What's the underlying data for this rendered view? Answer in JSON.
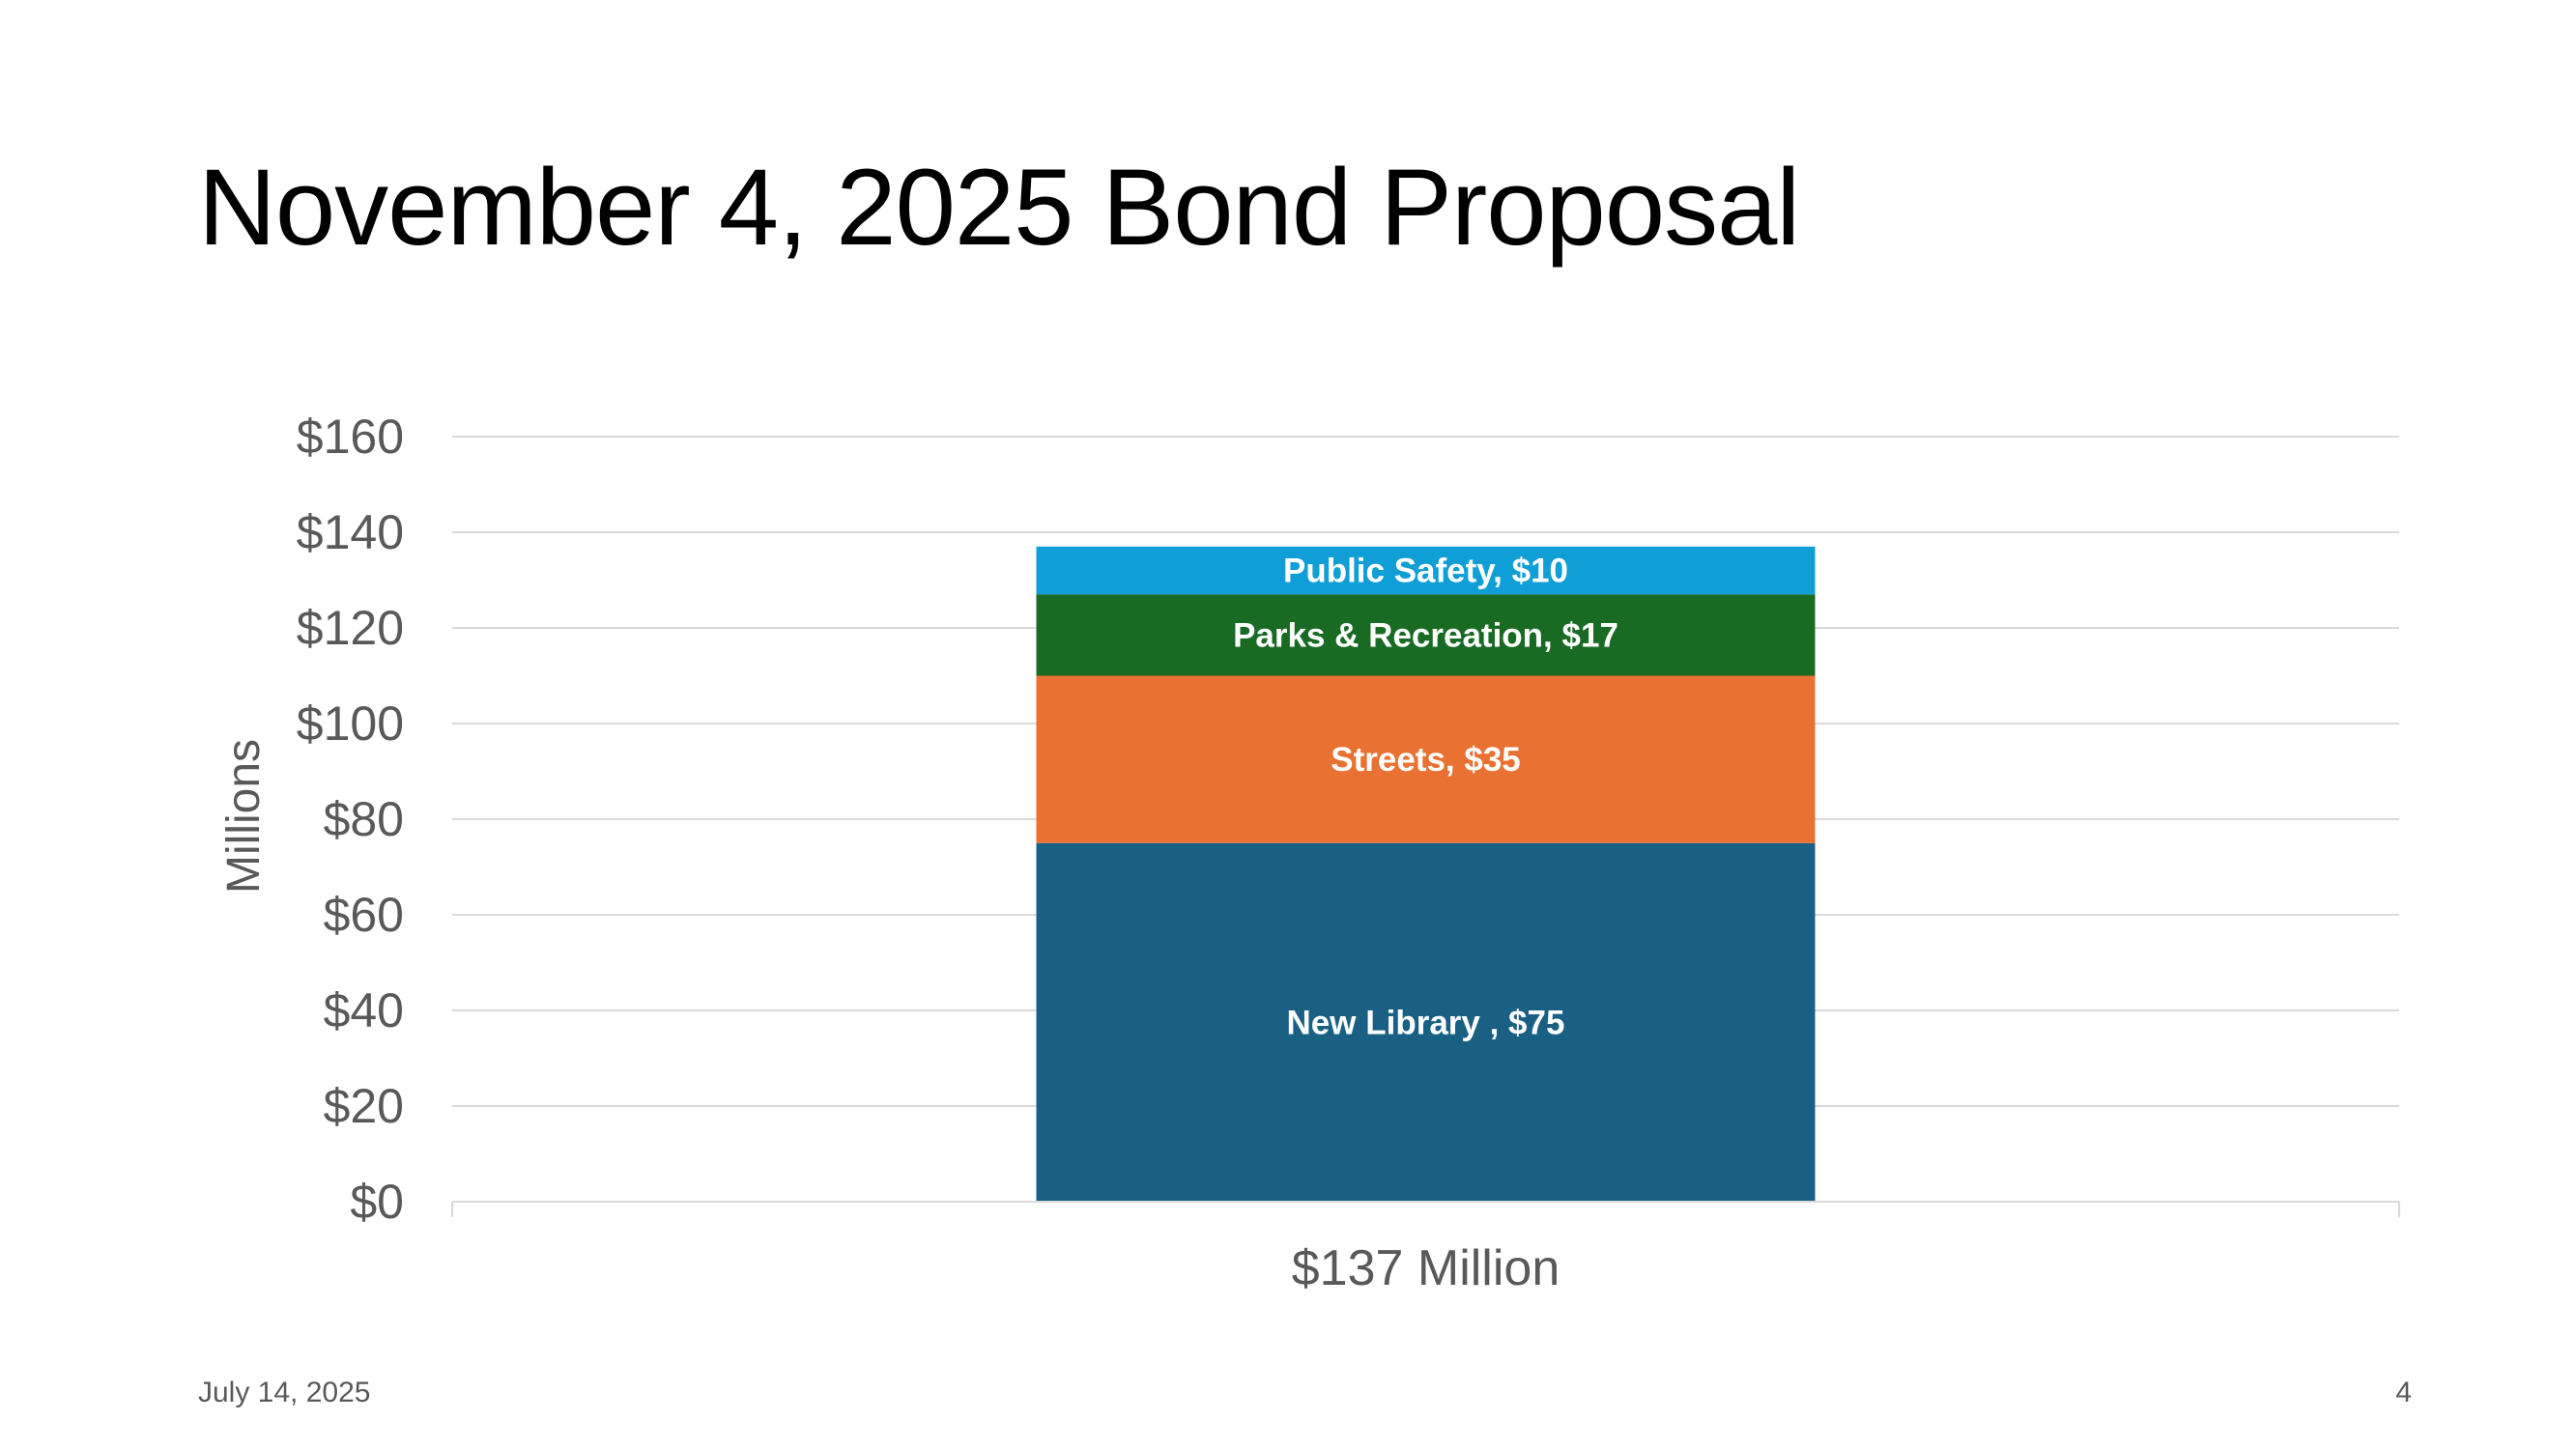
{
  "slide": {
    "title": "November 4, 2025 Bond Proposal",
    "date": "July 14, 2025",
    "page_number": "4"
  },
  "chart_data": {
    "type": "bar",
    "stacked": true,
    "categories": [
      "$137 Million"
    ],
    "ylabel": "Millions",
    "ylim": [
      0,
      160
    ],
    "yticks": [
      0,
      20,
      40,
      60,
      80,
      100,
      120,
      140,
      160
    ],
    "ytick_labels": [
      "$0",
      "$20",
      "$40",
      "$60",
      "$80",
      "$100",
      "$120",
      "$140",
      "$160"
    ],
    "grid": true,
    "series": [
      {
        "name": "New Library",
        "values": [
          75
        ],
        "color": "#1a6084",
        "label": "New Library , $75"
      },
      {
        "name": "Streets",
        "values": [
          35
        ],
        "color": "#e97132",
        "label": "Streets, $35"
      },
      {
        "name": "Parks & Recreation",
        "values": [
          17
        ],
        "color": "#196b24",
        "label": "Parks & Recreation, $17"
      },
      {
        "name": "Public Safety",
        "values": [
          10
        ],
        "color": "#0f9ed5",
        "label": "Public Safety, $10"
      }
    ]
  }
}
